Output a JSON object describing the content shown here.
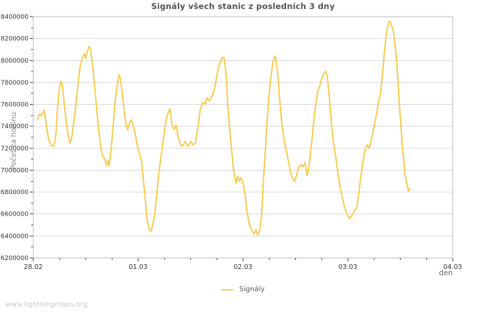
{
  "title": "Signály všech stanic z posledních 3 dny",
  "watermark": "www.lightningmaps.org",
  "colors": {
    "background": "#ffffff",
    "line": "#f8cb4c",
    "grid": "#d8d8d8",
    "border": "#b8b8b8",
    "tick": "#3a3a3a",
    "tick_label": "#333333",
    "title": "#555555",
    "axis_title": "#8a8a8a",
    "legend_text": "#555555",
    "watermark": "#c6c6c6"
  },
  "chart_data": {
    "type": "line",
    "title": "Signály všech stanic z posledních 3 dny",
    "xlabel": "den",
    "ylabel": "Počet za hodinu",
    "grid": true,
    "legend": {
      "position": "bottom-center",
      "entries": [
        {
          "label": "Signály",
          "color": "#f8cb4c"
        }
      ]
    },
    "ylim": [
      6200000,
      8400000
    ],
    "y_major_step": 200000,
    "y_minor_step": 100000,
    "x_range_days": [
      0,
      4
    ],
    "x_tick_days": [
      0,
      1,
      2,
      3,
      4
    ],
    "x_tick_labels": [
      "28.02",
      "01.03",
      "02.03",
      "03.03",
      "04.03"
    ],
    "x_minor_step_days": 0.25,
    "series": [
      {
        "name": "Signály",
        "color": "#f8cb4c",
        "points": [
          [
            0.039,
            7460000
          ],
          [
            0.059,
            7510000
          ],
          [
            0.079,
            7500000
          ],
          [
            0.092,
            7520000
          ],
          [
            0.105,
            7550000
          ],
          [
            0.118,
            7450000
          ],
          [
            0.138,
            7320000
          ],
          [
            0.151,
            7270000
          ],
          [
            0.171,
            7230000
          ],
          [
            0.191,
            7220000
          ],
          [
            0.204,
            7250000
          ],
          [
            0.217,
            7350000
          ],
          [
            0.23,
            7550000
          ],
          [
            0.243,
            7700000
          ],
          [
            0.257,
            7790000
          ],
          [
            0.263,
            7810000
          ],
          [
            0.276,
            7780000
          ],
          [
            0.296,
            7600000
          ],
          [
            0.316,
            7420000
          ],
          [
            0.336,
            7300000
          ],
          [
            0.349,
            7250000
          ],
          [
            0.362,
            7280000
          ],
          [
            0.375,
            7350000
          ],
          [
            0.401,
            7550000
          ],
          [
            0.428,
            7800000
          ],
          [
            0.447,
            7950000
          ],
          [
            0.467,
            8020000
          ],
          [
            0.487,
            8060000
          ],
          [
            0.5,
            8020000
          ],
          [
            0.513,
            8080000
          ],
          [
            0.533,
            8130000
          ],
          [
            0.546,
            8100000
          ],
          [
            0.566,
            7950000
          ],
          [
            0.586,
            7750000
          ],
          [
            0.605,
            7550000
          ],
          [
            0.625,
            7350000
          ],
          [
            0.645,
            7200000
          ],
          [
            0.664,
            7120000
          ],
          [
            0.684,
            7100000
          ],
          [
            0.697,
            7040000
          ],
          [
            0.711,
            7090000
          ],
          [
            0.724,
            7040000
          ],
          [
            0.743,
            7200000
          ],
          [
            0.763,
            7420000
          ],
          [
            0.783,
            7650000
          ],
          [
            0.803,
            7800000
          ],
          [
            0.816,
            7870000
          ],
          [
            0.829,
            7840000
          ],
          [
            0.849,
            7700000
          ],
          [
            0.868,
            7520000
          ],
          [
            0.888,
            7400000
          ],
          [
            0.901,
            7370000
          ],
          [
            0.921,
            7440000
          ],
          [
            0.934,
            7460000
          ],
          [
            0.954,
            7400000
          ],
          [
            0.974,
            7320000
          ],
          [
            0.993,
            7220000
          ],
          [
            1.013,
            7150000
          ],
          [
            1.033,
            7080000
          ],
          [
            1.046,
            6950000
          ],
          [
            1.066,
            6750000
          ],
          [
            1.079,
            6600000
          ],
          [
            1.092,
            6520000
          ],
          [
            1.105,
            6460000
          ],
          [
            1.118,
            6440000
          ],
          [
            1.132,
            6470000
          ],
          [
            1.145,
            6530000
          ],
          [
            1.158,
            6600000
          ],
          [
            1.171,
            6720000
          ],
          [
            1.184,
            6850000
          ],
          [
            1.197,
            6970000
          ],
          [
            1.217,
            7120000
          ],
          [
            1.237,
            7260000
          ],
          [
            1.257,
            7400000
          ],
          [
            1.276,
            7500000
          ],
          [
            1.303,
            7560000
          ],
          [
            1.322,
            7420000
          ],
          [
            1.342,
            7370000
          ],
          [
            1.362,
            7410000
          ],
          [
            1.382,
            7300000
          ],
          [
            1.401,
            7240000
          ],
          [
            1.421,
            7220000
          ],
          [
            1.447,
            7260000
          ],
          [
            1.474,
            7220000
          ],
          [
            1.5,
            7260000
          ],
          [
            1.526,
            7230000
          ],
          [
            1.546,
            7250000
          ],
          [
            1.572,
            7400000
          ],
          [
            1.592,
            7550000
          ],
          [
            1.618,
            7620000
          ],
          [
            1.638,
            7600000
          ],
          [
            1.658,
            7660000
          ],
          [
            1.678,
            7630000
          ],
          [
            1.697,
            7660000
          ],
          [
            1.724,
            7720000
          ],
          [
            1.743,
            7820000
          ],
          [
            1.763,
            7920000
          ],
          [
            1.789,
            8000000
          ],
          [
            1.809,
            8030000
          ],
          [
            1.822,
            8020000
          ],
          [
            1.842,
            7850000
          ],
          [
            1.855,
            7600000
          ],
          [
            1.875,
            7350000
          ],
          [
            1.895,
            7150000
          ],
          [
            1.908,
            7020000
          ],
          [
            1.921,
            6940000
          ],
          [
            1.934,
            6880000
          ],
          [
            1.947,
            6940000
          ],
          [
            1.967,
            6900000
          ],
          [
            1.98,
            6930000
          ],
          [
            2.0,
            6890000
          ],
          [
            2.02,
            6780000
          ],
          [
            2.039,
            6620000
          ],
          [
            2.059,
            6520000
          ],
          [
            2.079,
            6460000
          ],
          [
            2.105,
            6420000
          ],
          [
            2.125,
            6460000
          ],
          [
            2.138,
            6410000
          ],
          [
            2.158,
            6440000
          ],
          [
            2.178,
            6600000
          ],
          [
            2.191,
            6850000
          ],
          [
            2.211,
            7150000
          ],
          [
            2.23,
            7450000
          ],
          [
            2.25,
            7700000
          ],
          [
            2.27,
            7880000
          ],
          [
            2.289,
            8000000
          ],
          [
            2.309,
            8040000
          ],
          [
            2.329,
            7900000
          ],
          [
            2.349,
            7650000
          ],
          [
            2.368,
            7450000
          ],
          [
            2.388,
            7300000
          ],
          [
            2.408,
            7200000
          ],
          [
            2.434,
            7080000
          ],
          [
            2.454,
            6980000
          ],
          [
            2.474,
            6920000
          ],
          [
            2.493,
            6900000
          ],
          [
            2.513,
            6960000
          ],
          [
            2.533,
            7030000
          ],
          [
            2.553,
            7050000
          ],
          [
            2.572,
            7030000
          ],
          [
            2.592,
            7070000
          ],
          [
            2.612,
            6950000
          ],
          [
            2.632,
            7050000
          ],
          [
            2.651,
            7220000
          ],
          [
            2.671,
            7400000
          ],
          [
            2.691,
            7580000
          ],
          [
            2.711,
            7710000
          ],
          [
            2.73,
            7760000
          ],
          [
            2.75,
            7830000
          ],
          [
            2.77,
            7880000
          ],
          [
            2.789,
            7900000
          ],
          [
            2.803,
            7860000
          ],
          [
            2.822,
            7680000
          ],
          [
            2.842,
            7450000
          ],
          [
            2.862,
            7250000
          ],
          [
            2.888,
            7100000
          ],
          [
            2.908,
            6950000
          ],
          [
            2.928,
            6840000
          ],
          [
            2.947,
            6750000
          ],
          [
            2.967,
            6670000
          ],
          [
            2.987,
            6610000
          ],
          [
            3.0,
            6580000
          ],
          [
            3.02,
            6560000
          ],
          [
            3.039,
            6590000
          ],
          [
            3.059,
            6620000
          ],
          [
            3.086,
            6660000
          ],
          [
            3.105,
            6800000
          ],
          [
            3.125,
            6950000
          ],
          [
            3.145,
            7080000
          ],
          [
            3.164,
            7180000
          ],
          [
            3.184,
            7230000
          ],
          [
            3.204,
            7200000
          ],
          [
            3.224,
            7280000
          ],
          [
            3.243,
            7360000
          ],
          [
            3.263,
            7460000
          ],
          [
            3.283,
            7560000
          ],
          [
            3.296,
            7640000
          ],
          [
            3.309,
            7680000
          ],
          [
            3.329,
            7850000
          ],
          [
            3.349,
            8080000
          ],
          [
            3.368,
            8250000
          ],
          [
            3.388,
            8350000
          ],
          [
            3.401,
            8360000
          ],
          [
            3.414,
            8330000
          ],
          [
            3.434,
            8270000
          ],
          [
            3.447,
            8170000
          ],
          [
            3.467,
            7980000
          ],
          [
            3.48,
            7780000
          ],
          [
            3.493,
            7580000
          ],
          [
            3.507,
            7400000
          ],
          [
            3.52,
            7220000
          ],
          [
            3.533,
            7090000
          ],
          [
            3.546,
            6960000
          ],
          [
            3.566,
            6860000
          ],
          [
            3.579,
            6810000
          ],
          [
            3.592,
            6830000
          ]
        ]
      }
    ]
  }
}
